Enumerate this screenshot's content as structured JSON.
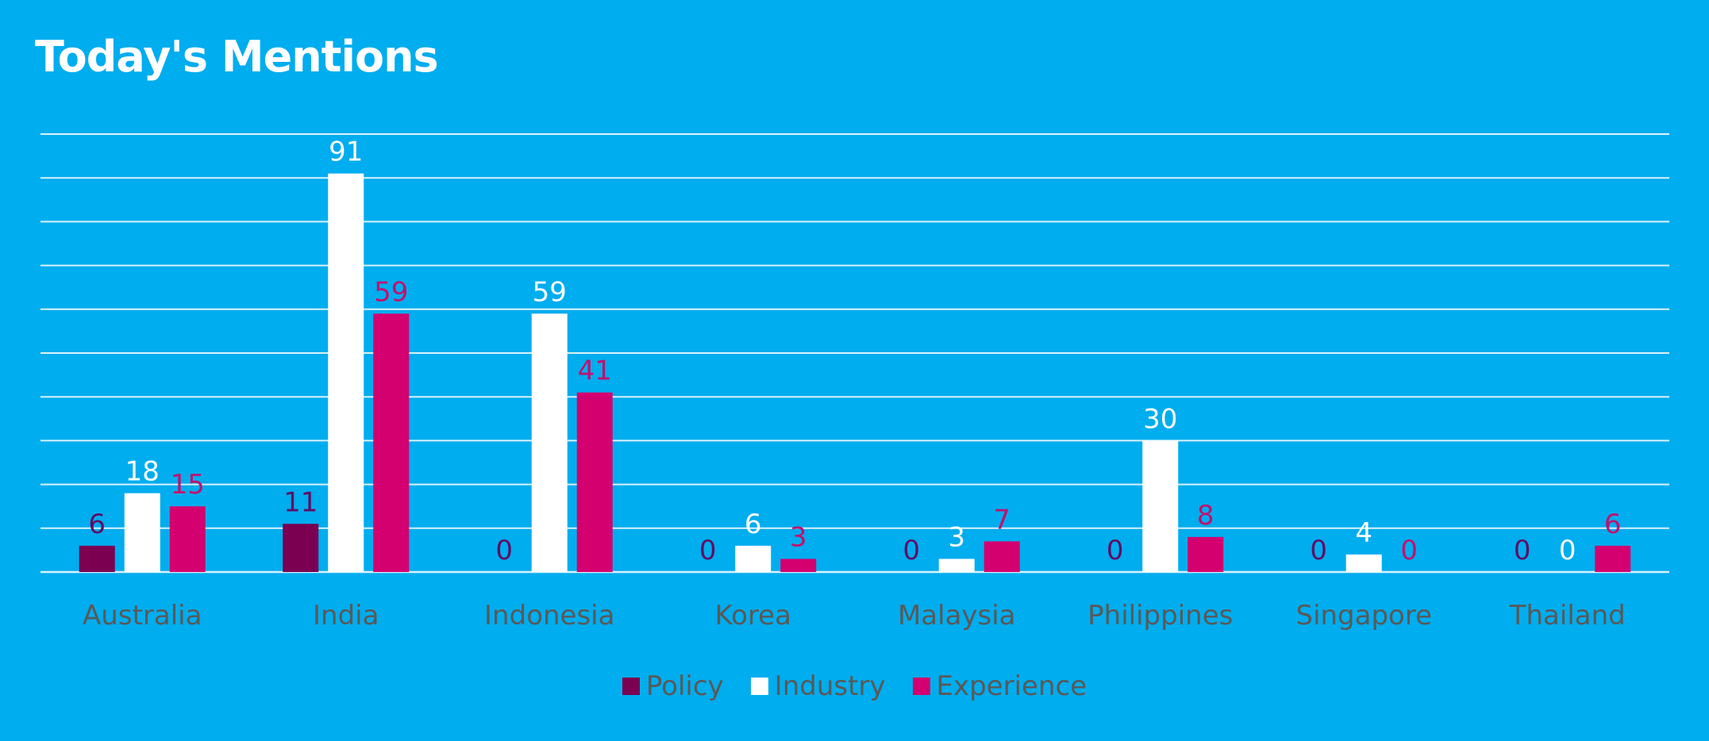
{
  "chart_data": {
    "type": "bar",
    "title": "Today's Mentions",
    "categories": [
      "Australia",
      "India",
      "Indonesia",
      "Korea",
      "Malaysia",
      "Philippines",
      "Singapore",
      "Thailand"
    ],
    "series": [
      {
        "name": "Policy",
        "color": "#7B0051",
        "label_color": "#5E0E66",
        "values": [
          6,
          11,
          0,
          0,
          0,
          0,
          0,
          0
        ]
      },
      {
        "name": "Industry",
        "color": "#FFFFFF",
        "label_color": "#FFFFFF",
        "values": [
          18,
          91,
          59,
          6,
          3,
          30,
          4,
          0
        ]
      },
      {
        "name": "Experience",
        "color": "#D4006F",
        "label_color": "#C2106E",
        "values": [
          15,
          59,
          41,
          3,
          7,
          8,
          0,
          6
        ]
      }
    ],
    "ylim": [
      0,
      100
    ],
    "grid": true,
    "legend_position": "bottom",
    "axis_label_color": "#595959"
  }
}
